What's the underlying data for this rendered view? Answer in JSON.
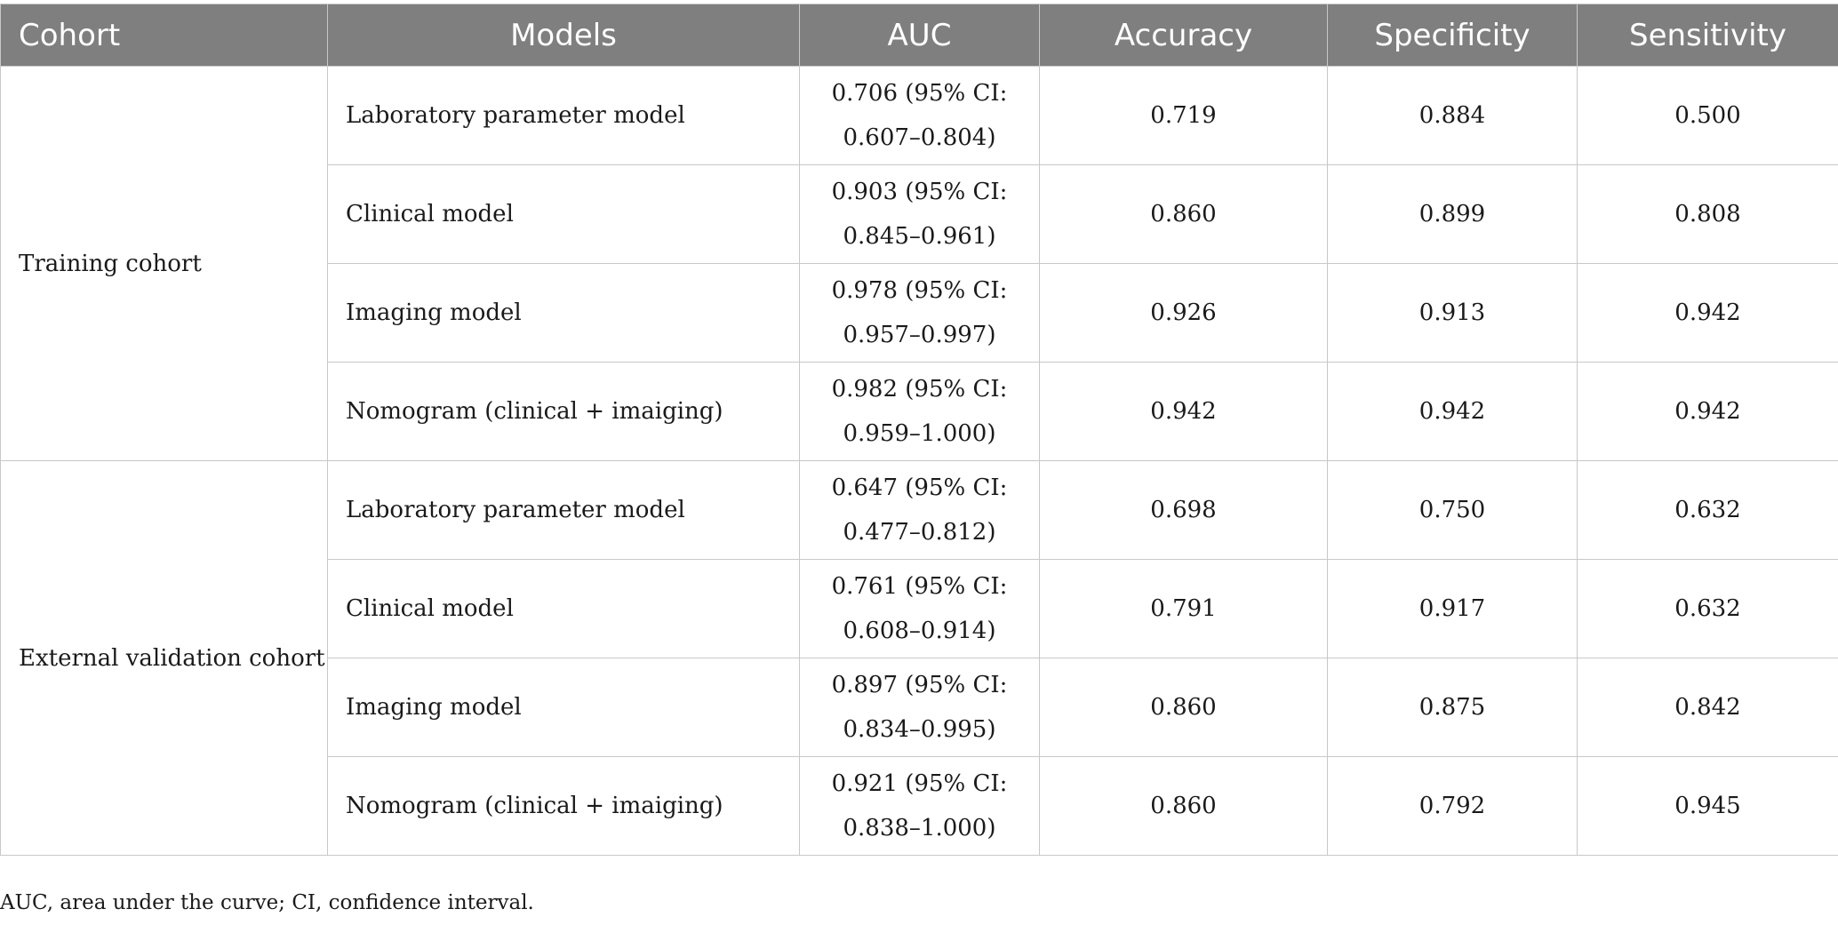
{
  "table": {
    "headers": [
      "Cohort",
      "Models",
      "AUC",
      "Accuracy",
      "Specificity",
      "Sensitivity"
    ],
    "groups": [
      {
        "cohort": "Training cohort",
        "rows": [
          {
            "model": "Laboratory parameter model",
            "auc_line1": "0.706 (95% CI:",
            "auc_line2": "0.607–0.804)",
            "accuracy": "0.719",
            "specificity": "0.884",
            "sensitivity": "0.500"
          },
          {
            "model": "Clinical model",
            "auc_line1": "0.903 (95% CI:",
            "auc_line2": "0.845–0.961)",
            "accuracy": "0.860",
            "specificity": "0.899",
            "sensitivity": "0.808"
          },
          {
            "model": "Imaging model",
            "auc_line1": "0.978 (95% CI:",
            "auc_line2": "0.957–0.997)",
            "accuracy": "0.926",
            "specificity": "0.913",
            "sensitivity": "0.942"
          },
          {
            "model": "Nomogram (clinical + imaiging)",
            "auc_line1": "0.982 (95% CI:",
            "auc_line2": "0.959–1.000)",
            "accuracy": "0.942",
            "specificity": "0.942",
            "sensitivity": "0.942"
          }
        ]
      },
      {
        "cohort": "External validation cohort",
        "rows": [
          {
            "model": "Laboratory parameter model",
            "auc_line1": "0.647 (95% CI:",
            "auc_line2": "0.477–0.812)",
            "accuracy": "0.698",
            "specificity": "0.750",
            "sensitivity": "0.632"
          },
          {
            "model": "Clinical model",
            "auc_line1": "0.761 (95% CI:",
            "auc_line2": "0.608–0.914)",
            "accuracy": "0.791",
            "specificity": "0.917",
            "sensitivity": "0.632"
          },
          {
            "model": "Imaging model",
            "auc_line1": "0.897 (95% CI:",
            "auc_line2": "0.834–0.995)",
            "accuracy": "0.860",
            "specificity": "0.875",
            "sensitivity": "0.842"
          },
          {
            "model": "Nomogram (clinical + imaiging)",
            "auc_line1": "0.921 (95% CI:",
            "auc_line2": "0.838–1.000)",
            "accuracy": "0.860",
            "specificity": "0.792",
            "sensitivity": "0.945"
          }
        ]
      }
    ]
  },
  "footnote": "AUC, area under the curve; CI, confidence interval."
}
